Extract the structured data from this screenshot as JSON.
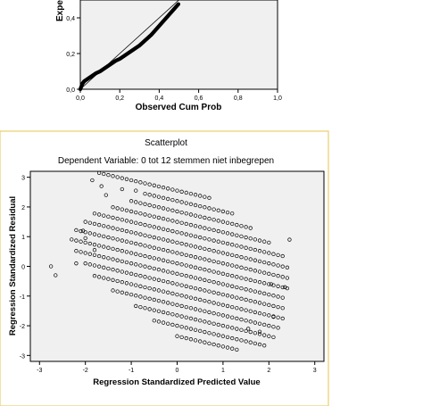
{
  "chart_data": [
    {
      "type": "line",
      "title": "",
      "xlabel": "Observed Cum Prob",
      "ylabel": "Expected Cum Prob",
      "xlim": [
        0,
        1
      ],
      "ylim": [
        0,
        0.5
      ],
      "x_ticks": [
        "0,0",
        "0,2",
        "0,4",
        "0,6",
        "0,8",
        "1,0"
      ],
      "y_ticks": [
        "0,0",
        "0,2",
        "0,4"
      ],
      "reference_line": {
        "from": [
          0,
          0
        ],
        "to": [
          1,
          1
        ]
      },
      "series": [
        {
          "x": [
            0.0,
            0.01,
            0.02,
            0.04,
            0.06,
            0.08,
            0.1,
            0.12,
            0.14,
            0.16,
            0.18,
            0.2,
            0.22,
            0.24,
            0.26,
            0.28,
            0.3,
            0.32,
            0.34,
            0.36,
            0.38,
            0.4,
            0.42,
            0.44,
            0.46,
            0.48,
            0.5
          ],
          "y": [
            0.0,
            0.03,
            0.045,
            0.06,
            0.075,
            0.09,
            0.1,
            0.115,
            0.13,
            0.145,
            0.16,
            0.17,
            0.185,
            0.2,
            0.215,
            0.23,
            0.245,
            0.265,
            0.285,
            0.305,
            0.33,
            0.355,
            0.38,
            0.405,
            0.43,
            0.455,
            0.48
          ]
        }
      ],
      "grid": false
    },
    {
      "type": "scatter",
      "title": "Scatterplot",
      "subtitle": "Dependent Variable: 0 tot 12 stemmen niet inbegrepen",
      "xlabel": "Regression Standardized Predicted Value",
      "ylabel": "Regression Standardized Residual",
      "xlim": [
        -3.2,
        3.2
      ],
      "ylim": [
        -3.2,
        3.2
      ],
      "x_ticks": [
        "-3",
        "-2",
        "-1",
        "0",
        "1",
        "2",
        "3"
      ],
      "y_ticks": [
        "-3",
        "-2",
        "-1",
        "0",
        "1",
        "2",
        "3"
      ],
      "marker": "open-circle",
      "grid": false,
      "background": "#f0f0f0",
      "outliers": {
        "x": [
          -2.75,
          -2.65,
          -2.2,
          -2.05,
          -2.0,
          -1.85,
          -1.8,
          -1.65,
          -1.55,
          -1.2,
          -0.9,
          1.55,
          1.8,
          2.05,
          2.1,
          2.35,
          2.45
        ],
        "y": [
          0.0,
          -0.3,
          0.1,
          1.2,
          0.95,
          2.9,
          0.55,
          2.7,
          2.4,
          2.6,
          2.55,
          -2.1,
          -2.2,
          -0.6,
          -1.7,
          -0.7,
          0.9
        ]
      },
      "bands": [
        {
          "intercept": -2.35,
          "x0": 0.0,
          "x1": 1.35
        },
        {
          "intercept": -2.0,
          "x0": -0.5,
          "x1": 1.9
        },
        {
          "intercept": -1.65,
          "x0": -0.9,
          "x1": 2.1
        },
        {
          "intercept": -1.3,
          "x0": -1.4,
          "x1": 2.2
        },
        {
          "intercept": -0.95,
          "x0": -1.8,
          "x1": 2.3
        },
        {
          "intercept": -0.6,
          "x0": -2.0,
          "x1": 2.3
        },
        {
          "intercept": -0.25,
          "x0": -2.2,
          "x1": 2.35
        },
        {
          "intercept": 0.1,
          "x0": -2.3,
          "x1": 2.4
        },
        {
          "intercept": 0.45,
          "x0": -2.2,
          "x1": 2.4
        },
        {
          "intercept": 0.8,
          "x0": -2.0,
          "x1": 2.4
        },
        {
          "intercept": 1.15,
          "x0": -1.8,
          "x1": 2.3
        },
        {
          "intercept": 1.5,
          "x0": -1.4,
          "x1": 2.0
        },
        {
          "intercept": 1.85,
          "x0": -1.0,
          "x1": 1.6
        },
        {
          "intercept": 2.2,
          "x0": -0.7,
          "x1": 1.2
        },
        {
          "intercept": 2.55,
          "x0": -1.7,
          "x1": 0.7
        }
      ],
      "band_slope": -0.35,
      "band_x_step": 0.1
    }
  ]
}
